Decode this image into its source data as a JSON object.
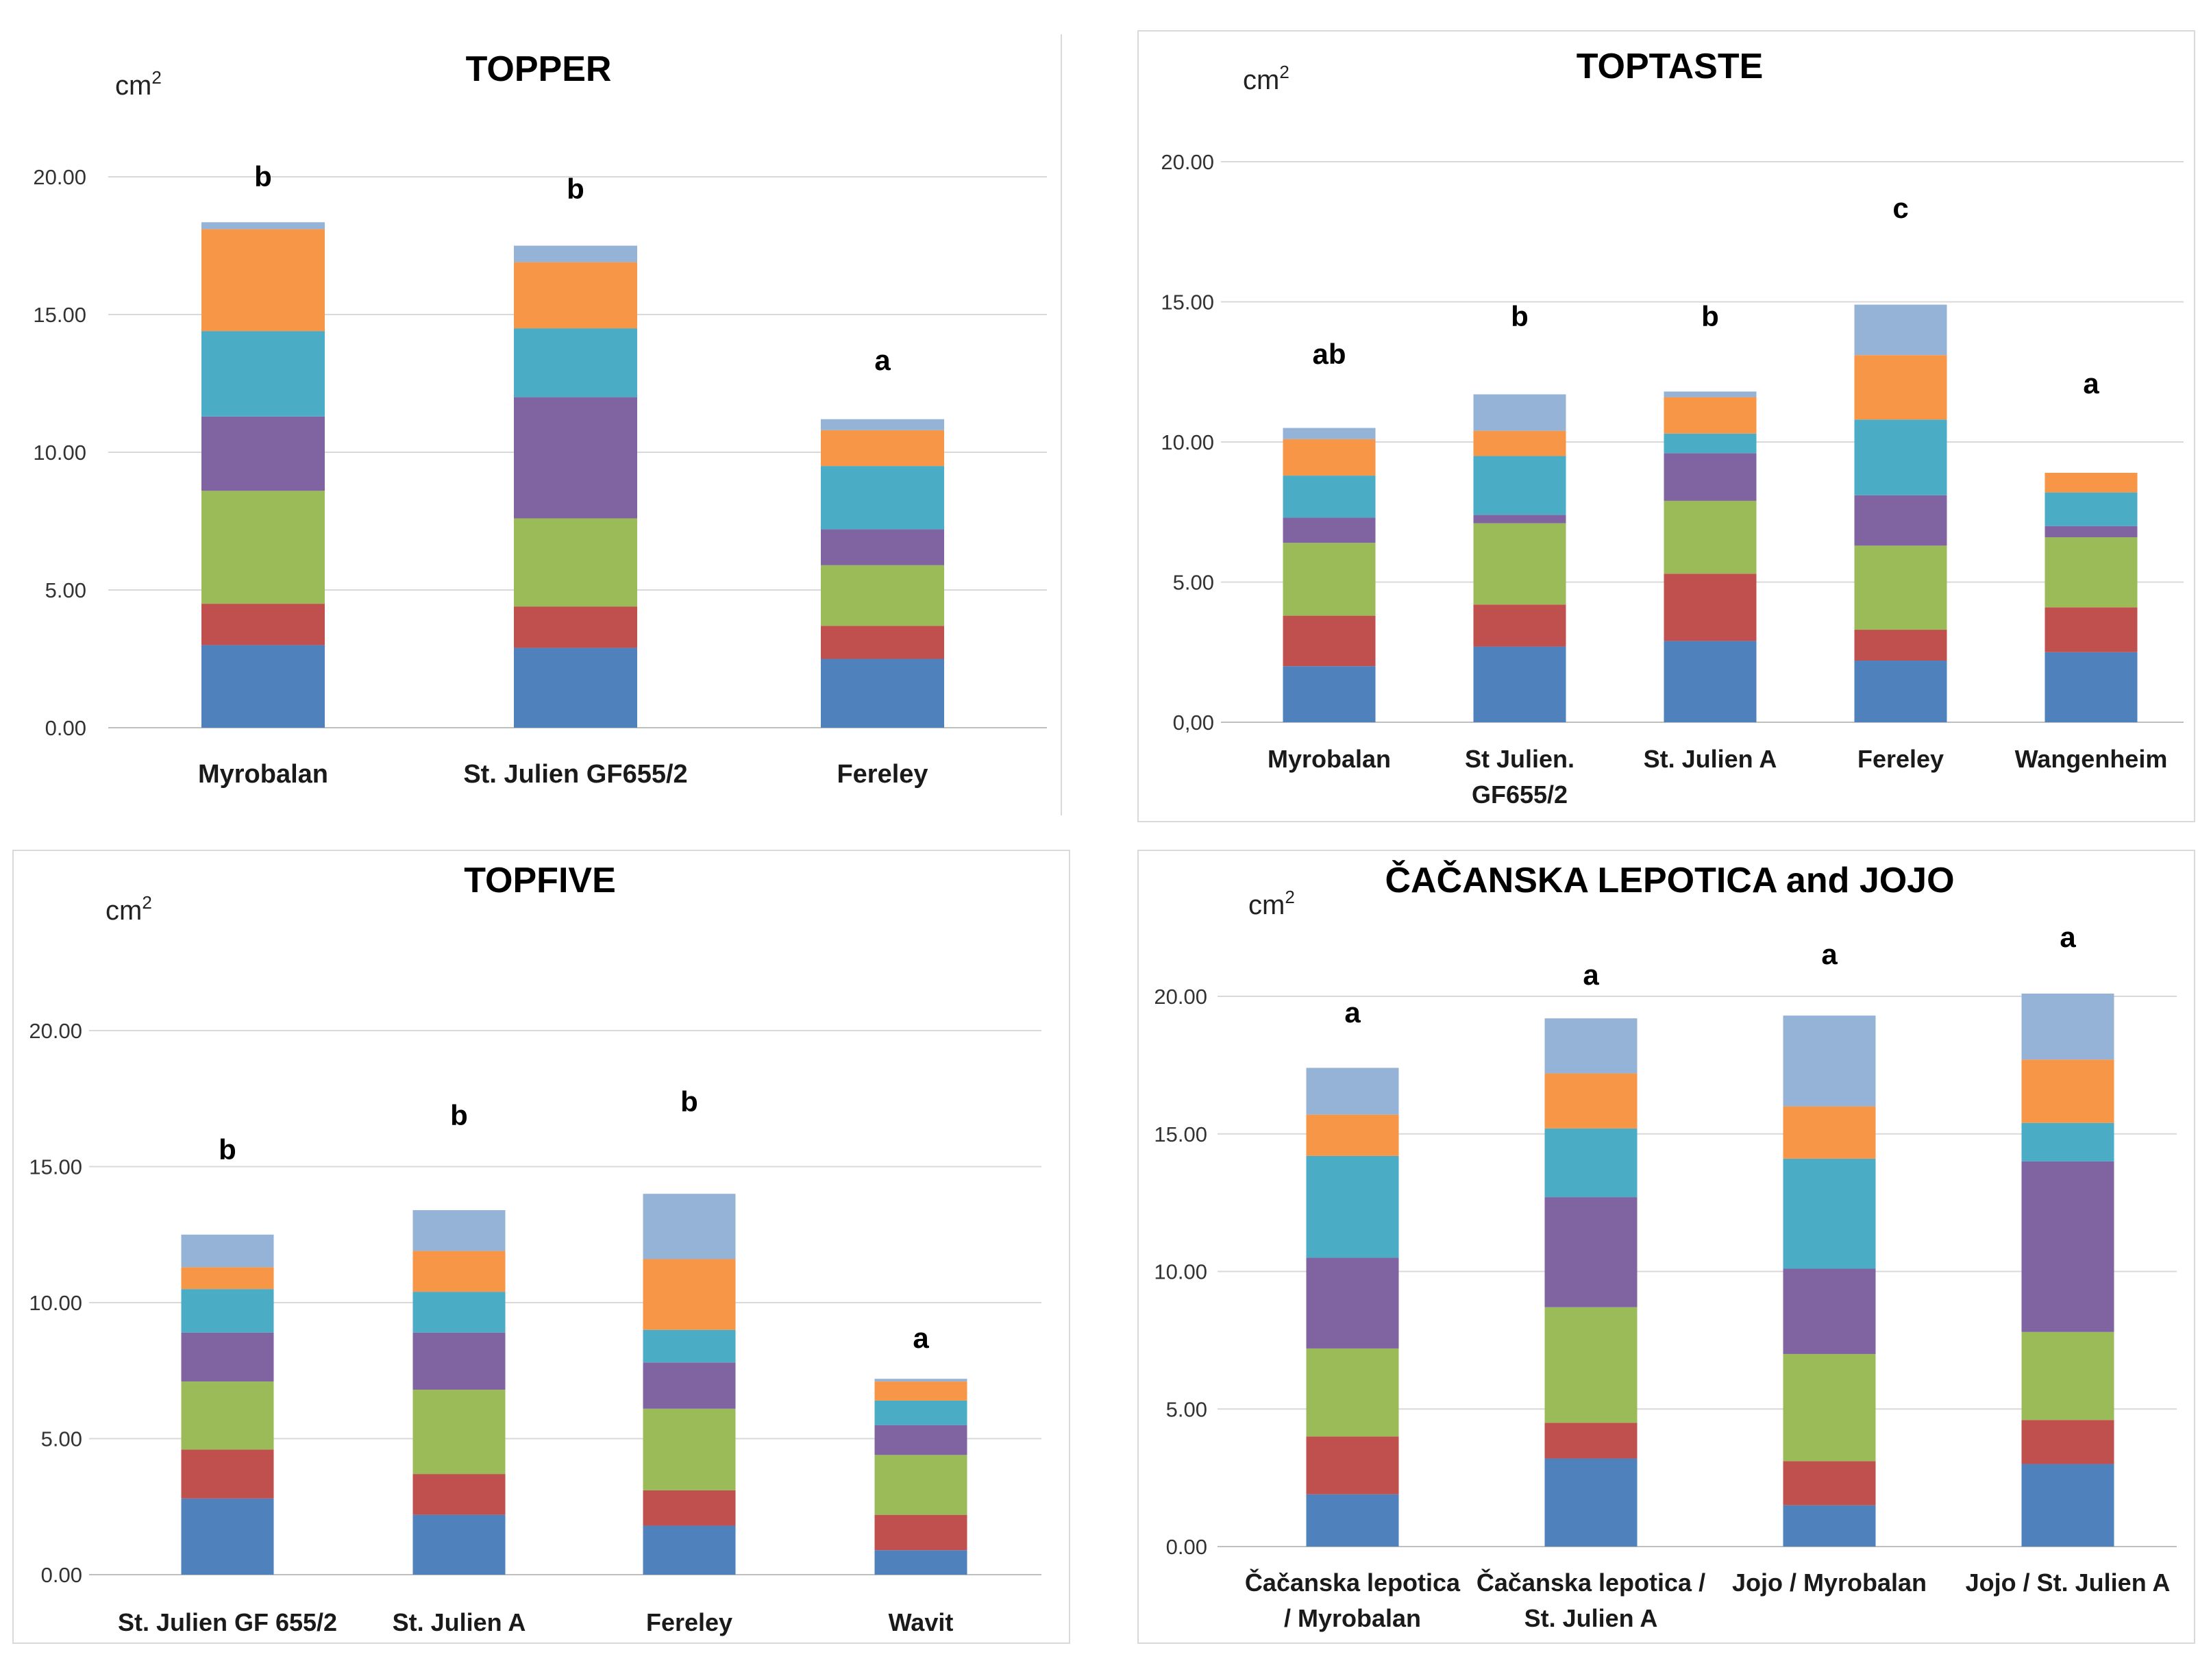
{
  "colors": [
    "#4f81bd",
    "#c0504d",
    "#9bbb59",
    "#8064a2",
    "#4bacc6",
    "#f79646",
    "#95b3d7"
  ],
  "chart_data": [
    {
      "type": "bar",
      "stacked": true,
      "title": "TOPPER",
      "ylabel": "cm2",
      "ylim": [
        0,
        20
      ],
      "yticks": [
        "0.00",
        "5.00",
        "10.00",
        "15.00",
        "20.00"
      ],
      "categories": [
        [
          "Myrobalan"
        ],
        [
          "St. Julien GF655/2"
        ],
        [
          "Fereley"
        ]
      ],
      "significance": [
        "b",
        "b",
        "a"
      ],
      "series": [
        {
          "name": "segment 1",
          "values": [
            3.0,
            2.9,
            2.5
          ]
        },
        {
          "name": "segment 2",
          "values": [
            1.5,
            1.5,
            1.2
          ]
        },
        {
          "name": "segment 3",
          "values": [
            4.1,
            3.2,
            2.2
          ]
        },
        {
          "name": "segment 4",
          "values": [
            2.7,
            4.4,
            1.3
          ]
        },
        {
          "name": "segment 5",
          "values": [
            3.1,
            2.5,
            2.3
          ]
        },
        {
          "name": "segment 6",
          "values": [
            3.7,
            2.4,
            1.3
          ]
        },
        {
          "name": "segment 7",
          "values": [
            0.25,
            0.6,
            0.4
          ]
        }
      ]
    },
    {
      "type": "bar",
      "stacked": true,
      "title": "TOPTASTE",
      "ylabel": "cm2",
      "ylim": [
        0,
        20
      ],
      "yticks": [
        "0,00",
        "5.00",
        "10.00",
        "15.00",
        "20.00"
      ],
      "categories": [
        [
          "Myrobalan"
        ],
        [
          "St Julien.",
          "GF655/2"
        ],
        [
          "St. Julien A"
        ],
        [
          "Fereley"
        ],
        [
          "Wangenheim"
        ]
      ],
      "significance": [
        "ab",
        "b",
        "b",
        "c",
        "a"
      ],
      "series": [
        {
          "name": "segment 1",
          "values": [
            2.0,
            2.7,
            2.9,
            2.2,
            2.5
          ]
        },
        {
          "name": "segment 2",
          "values": [
            1.8,
            1.5,
            2.4,
            1.1,
            1.6
          ]
        },
        {
          "name": "segment 3",
          "values": [
            2.6,
            2.9,
            2.6,
            3.0,
            2.5
          ]
        },
        {
          "name": "segment 4",
          "values": [
            0.9,
            0.3,
            1.7,
            1.8,
            0.4
          ]
        },
        {
          "name": "segment 5",
          "values": [
            1.5,
            2.1,
            0.7,
            2.7,
            1.2
          ]
        },
        {
          "name": "segment 6",
          "values": [
            1.3,
            0.9,
            1.3,
            2.3,
            0.7
          ]
        },
        {
          "name": "segment 7",
          "values": [
            0.4,
            1.3,
            0.2,
            1.8,
            0.0
          ]
        }
      ]
    },
    {
      "type": "bar",
      "stacked": true,
      "title": "TOPFIVE",
      "ylabel": "cm2",
      "ylim": [
        0,
        20
      ],
      "yticks": [
        "0.00",
        "5.00",
        "10.00",
        "15.00",
        "20.00"
      ],
      "categories": [
        [
          "St. Julien GF 655/2"
        ],
        [
          "St. Julien A"
        ],
        [
          "Fereley"
        ],
        [
          "Wavit"
        ]
      ],
      "significance": [
        "b",
        "b",
        "b",
        "a"
      ],
      "series": [
        {
          "name": "segment 1",
          "values": [
            2.8,
            2.2,
            1.8,
            0.9
          ]
        },
        {
          "name": "segment 2",
          "values": [
            1.8,
            1.5,
            1.3,
            1.3
          ]
        },
        {
          "name": "segment 3",
          "values": [
            2.5,
            3.1,
            3.0,
            2.2
          ]
        },
        {
          "name": "segment 4",
          "values": [
            1.8,
            2.1,
            1.7,
            1.1
          ]
        },
        {
          "name": "segment 5",
          "values": [
            1.6,
            1.5,
            1.2,
            0.9
          ]
        },
        {
          "name": "segment 6",
          "values": [
            0.8,
            1.5,
            2.6,
            0.7
          ]
        },
        {
          "name": "segment 7",
          "values": [
            1.2,
            1.5,
            2.4,
            0.1
          ]
        }
      ]
    },
    {
      "type": "bar",
      "stacked": true,
      "title": "ČAČANSKA LEPOTICA and JOJO",
      "ylabel": "cm2",
      "ylim": [
        0,
        20
      ],
      "yticks": [
        "0.00",
        "5.00",
        "10.00",
        "15.00",
        "20.00"
      ],
      "categories": [
        [
          "Čačanska  lepotica",
          "/ Myrobalan"
        ],
        [
          "Čačanska lepotica /",
          "St. Julien A"
        ],
        [
          "Jojo / Myrobalan"
        ],
        [
          "Jojo / St. Julien A"
        ]
      ],
      "significance": [
        "a",
        "a",
        "a",
        "a"
      ],
      "series": [
        {
          "name": "segment 1",
          "values": [
            1.9,
            3.2,
            1.5,
            3.0
          ]
        },
        {
          "name": "segment 2",
          "values": [
            2.1,
            1.3,
            1.6,
            1.6
          ]
        },
        {
          "name": "segment 3",
          "values": [
            3.2,
            4.2,
            3.9,
            3.2
          ]
        },
        {
          "name": "segment 4",
          "values": [
            3.3,
            4.0,
            3.1,
            6.2
          ]
        },
        {
          "name": "segment 5",
          "values": [
            3.7,
            2.5,
            4.0,
            1.4
          ]
        },
        {
          "name": "segment 6",
          "values": [
            1.5,
            2.0,
            1.9,
            2.3
          ]
        },
        {
          "name": "segment 7",
          "values": [
            1.7,
            2.0,
            3.3,
            2.4
          ]
        }
      ]
    }
  ]
}
